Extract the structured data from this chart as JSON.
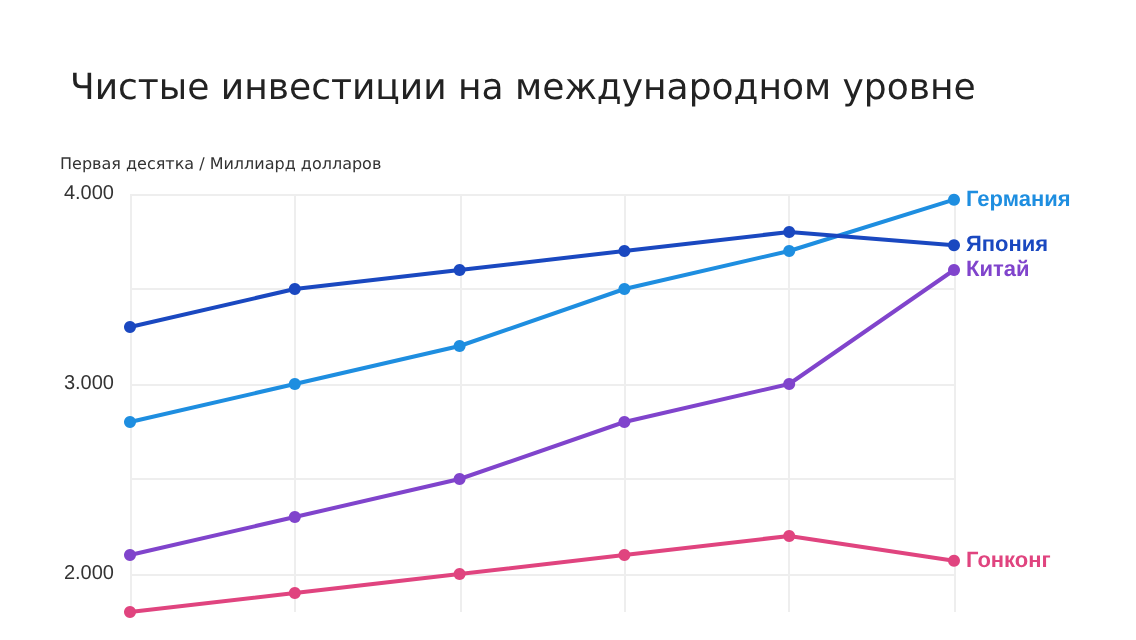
{
  "chart_data": {
    "type": "line",
    "title": "Чистые инвестиции на международном уровне",
    "ylabel": "Первая десятка / Миллиард долларов",
    "categories": [
      null,
      null,
      null,
      null,
      null,
      null
    ],
    "series": [
      {
        "name": "Германия",
        "color": "#1e8ee0",
        "values": [
          2800,
          3000,
          3200,
          3500,
          3700,
          3970
        ]
      },
      {
        "name": "Япония",
        "color": "#1a48c0",
        "values": [
          3300,
          3500,
          3600,
          3700,
          3800,
          3730
        ]
      },
      {
        "name": "Китай",
        "color": "#8044cc",
        "values": [
          2100,
          2300,
          2500,
          2800,
          3000,
          3600
        ]
      },
      {
        "name": "Гонконг",
        "color": "#e0447f",
        "values": [
          1800,
          1900,
          2000,
          2100,
          2200,
          2070
        ]
      }
    ],
    "ylim": [
      1800,
      4000
    ],
    "yticks": [
      {
        "value": 2000,
        "label": "2.000"
      },
      {
        "value": 2500,
        "label": null
      },
      {
        "value": 3000,
        "label": "3.000"
      },
      {
        "value": 3500,
        "label": null
      },
      {
        "value": 4000,
        "label": "4.000"
      }
    ],
    "grid": true,
    "marker": "circle",
    "line_style": "solid",
    "tick_labels": "y"
  }
}
